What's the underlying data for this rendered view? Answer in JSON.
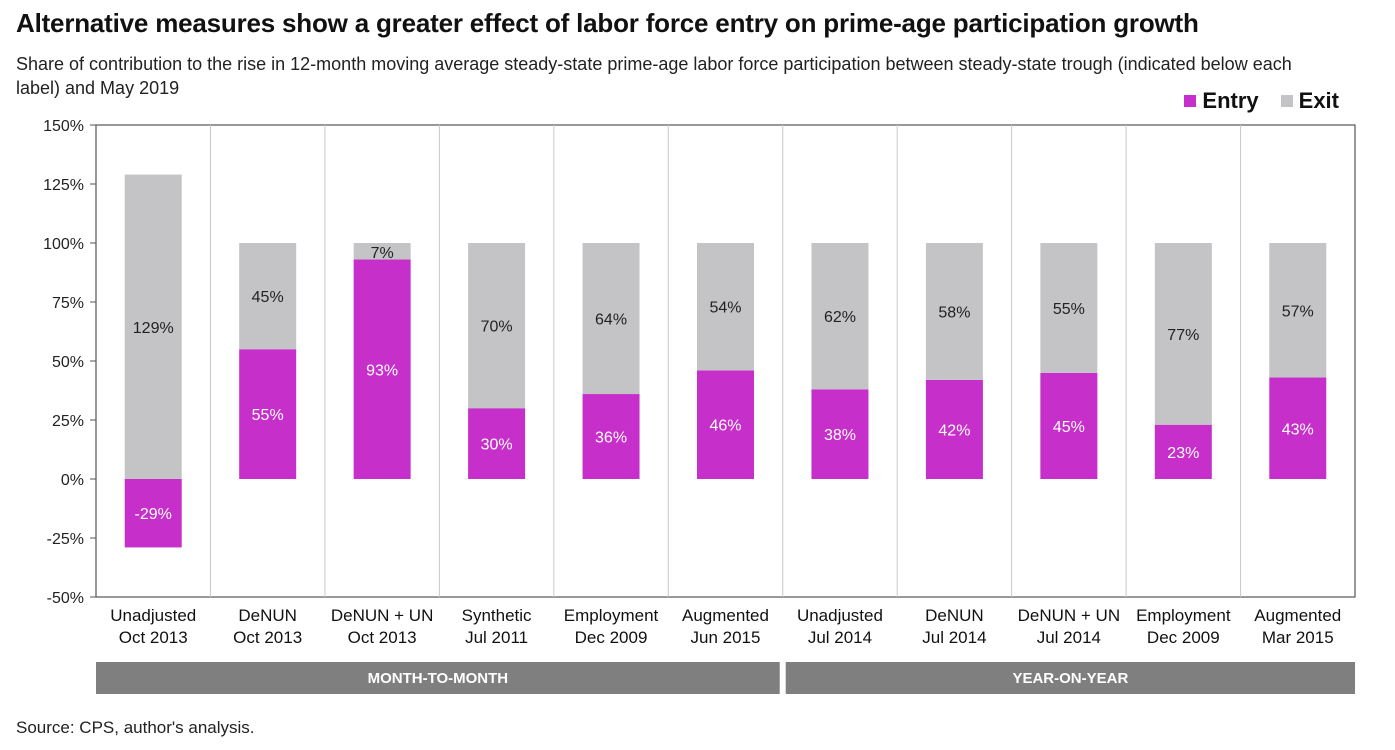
{
  "title": "Alternative measures show a greater effect of labor force entry on prime-age participation growth",
  "subtitle": "Share of contribution to the rise in 12-month moving average steady-state prime-age labor force participation between steady-state trough (indicated below each label) and May 2019",
  "legend": {
    "entry_label": "Entry",
    "exit_label": "Exit"
  },
  "colors": {
    "entry": "#c62fca",
    "exit": "#c4c4c6",
    "group_band": "#7f7f7f"
  },
  "source": "Source: CPS, author's analysis.",
  "chart_data": {
    "type": "bar",
    "stacked": true,
    "ylim": [
      -50,
      150
    ],
    "yticks": [
      -50,
      -25,
      0,
      25,
      50,
      75,
      100,
      125,
      150
    ],
    "ytick_labels": [
      "-50%",
      "-25%",
      "0%",
      "25%",
      "50%",
      "75%",
      "100%",
      "125%",
      "150%"
    ],
    "categories": [
      {
        "name": "Unadjusted",
        "trough": "Oct 2013"
      },
      {
        "name": "DeNUN",
        "trough": "Oct 2013"
      },
      {
        "name": "DeNUN + UN",
        "trough": "Oct 2013"
      },
      {
        "name": "Synthetic",
        "trough": "Jul 2011"
      },
      {
        "name": "Employment",
        "trough": "Dec 2009"
      },
      {
        "name": "Augmented",
        "trough": "Jun 2015"
      },
      {
        "name": "Unadjusted",
        "trough": "Jul 2014"
      },
      {
        "name": "DeNUN",
        "trough": "Jul 2014"
      },
      {
        "name": "DeNUN + UN",
        "trough": "Jul 2014"
      },
      {
        "name": "Employment",
        "trough": "Dec 2009"
      },
      {
        "name": "Augmented",
        "trough": "Mar 2015"
      }
    ],
    "series": [
      {
        "name": "Entry",
        "values": [
          -29,
          55,
          93,
          30,
          36,
          46,
          38,
          42,
          45,
          23,
          43
        ],
        "labels": [
          "-29%",
          "55%",
          "93%",
          "30%",
          "36%",
          "46%",
          "38%",
          "42%",
          "45%",
          "23%",
          "43%"
        ]
      },
      {
        "name": "Exit",
        "values": [
          129,
          45,
          7,
          70,
          64,
          54,
          62,
          58,
          55,
          77,
          57
        ],
        "labels": [
          "129%",
          "45%",
          "7%",
          "70%",
          "64%",
          "54%",
          "62%",
          "58%",
          "55%",
          "77%",
          "57%"
        ]
      }
    ],
    "groups": [
      {
        "label": "MONTH-TO-MONTH",
        "start": 0,
        "end": 5
      },
      {
        "label": "YEAR-ON-YEAR",
        "start": 6,
        "end": 10
      }
    ]
  }
}
